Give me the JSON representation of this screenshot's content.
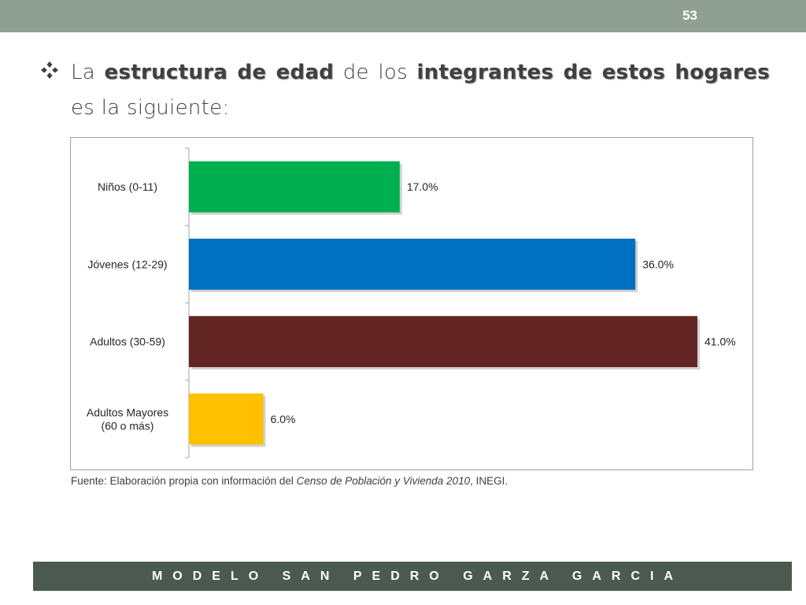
{
  "slide": {
    "page_number": "53",
    "intro": {
      "t1": "La ",
      "b1": "estructura de edad",
      "t2": " de los ",
      "b2": "integrantes de estos hogares",
      "t3": " es la siguiente:"
    },
    "source": {
      "prefix": "Fuente: Elaboración propia con información del ",
      "italic": "Censo de Población y Vivienda  2010",
      "suffix": ", INEGI."
    },
    "footer": "MODELO SAN PEDRO GARZA GARCIA",
    "colors": {
      "topbar": "#8fa093",
      "footer": "#4b5a50",
      "bullet": "#404040"
    }
  },
  "chart_data": {
    "type": "bar",
    "orientation": "horizontal",
    "categories": [
      "Niños (0-11)",
      "Jóvenes (12-29)",
      "Adultos (30-59)",
      "Adultos Mayores (60 o más)"
    ],
    "category_lines": [
      [
        "Niños (0-11)"
      ],
      [
        "Jóvenes (12-29)"
      ],
      [
        "Adultos (30-59)"
      ],
      [
        "Adultos Mayores",
        "(60 o más)"
      ]
    ],
    "values": [
      17.0,
      36.0,
      41.0,
      6.0
    ],
    "value_labels": [
      "17.0%",
      "36.0%",
      "41.0%",
      "6.0%"
    ],
    "colors": [
      "#00b050",
      "#0070c0",
      "#632523",
      "#ffc000"
    ],
    "xlim": [
      0,
      41.0
    ],
    "grid": false,
    "legend": "none"
  }
}
